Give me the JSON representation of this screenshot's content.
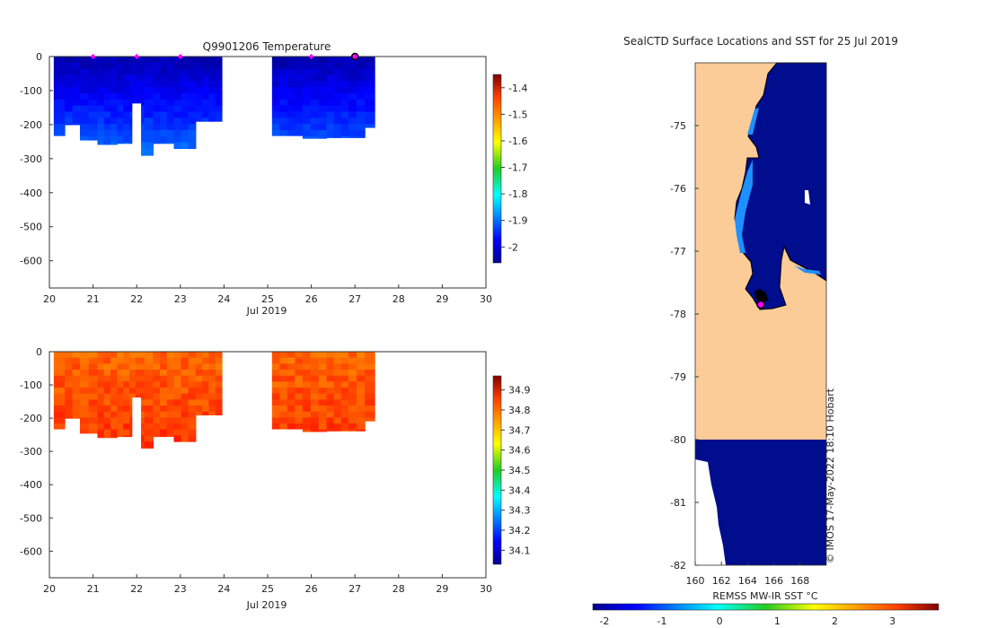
{
  "chart_data": [
    {
      "type": "heatmap",
      "title": "Q9901206  Temperature",
      "xlabel": "Jul 2019",
      "ylabel": "",
      "x_ticks": [
        "20",
        "21",
        "22",
        "23",
        "24",
        "25",
        "26",
        "27",
        "28",
        "29",
        "30"
      ],
      "xlim": [
        20,
        30
      ],
      "y_ticks": [
        "0",
        "-100",
        "-200",
        "-300",
        "-400",
        "-500",
        "-600"
      ],
      "ylim": [
        -680,
        0
      ],
      "colorbar": {
        "ticks": [
          "-1.4",
          "-1.5",
          "-1.6",
          "-1.7",
          "-1.8",
          "-1.9",
          "-2"
        ],
        "range": [
          -2.06,
          -1.35
        ]
      },
      "profile_bottoms_m": [
        {
          "day": 20.2,
          "depth": -232
        },
        {
          "day": 20.5,
          "depth": -200
        },
        {
          "day": 20.9,
          "depth": -245
        },
        {
          "day": 21.3,
          "depth": -258
        },
        {
          "day": 21.8,
          "depth": -255
        },
        {
          "day": 22.15,
          "depth": -290
        },
        {
          "day": 22.6,
          "depth": -255
        },
        {
          "day": 23.1,
          "depth": -270
        },
        {
          "day": 23.6,
          "depth": -190
        },
        {
          "day": 25.5,
          "depth": -232
        },
        {
          "day": 26.1,
          "depth": -240
        },
        {
          "day": 26.6,
          "depth": -238
        },
        {
          "day": 27.1,
          "depth": -238
        },
        {
          "day": 27.35,
          "depth": -208
        }
      ],
      "surface_markers_day": [
        21.0,
        22.0,
        23.0,
        26.0
      ],
      "current_marker_day": 27.0,
      "temperature_range_C": [
        -2.06,
        -1.88
      ]
    },
    {
      "type": "heatmap",
      "title": "",
      "xlabel": "Jul 2019",
      "ylabel": "",
      "x_ticks": [
        "20",
        "21",
        "22",
        "23",
        "24",
        "25",
        "26",
        "27",
        "28",
        "29",
        "30"
      ],
      "xlim": [
        20,
        30
      ],
      "y_ticks": [
        "0",
        "-100",
        "-200",
        "-300",
        "-400",
        "-500",
        "-600"
      ],
      "ylim": [
        -680,
        0
      ],
      "colorbar": {
        "ticks": [
          "34.9",
          "34.8",
          "34.7",
          "34.6",
          "34.5",
          "34.4",
          "34.3",
          "34.2",
          "34.1"
        ],
        "range": [
          34.03,
          34.97
        ]
      },
      "salinity_range": [
        34.72,
        34.84
      ]
    },
    {
      "type": "heatmap",
      "title": "SealCTD Surface Locations and SST for 25 Jul 2019",
      "x_ticks": [
        "160",
        "162",
        "164",
        "166",
        "168"
      ],
      "xlim": [
        160,
        170
      ],
      "y_ticks": [
        "-75",
        "-76",
        "-77",
        "-78",
        "-79",
        "-80",
        "-81",
        "-82"
      ],
      "ylim": [
        -82,
        -74
      ],
      "colorbar_label": "REMSS MW-IR SST °C",
      "colorbar_ticks": [
        "-2",
        "-1",
        "0",
        "1",
        "2",
        "3"
      ],
      "colorbar_range": [
        -2.2,
        3.8
      ],
      "seal_position": {
        "lon": 165.0,
        "lat": -77.85
      },
      "sst_ocean_C": -1.9
    }
  ],
  "credit": "© IMOS 17-May-2022 18:10 Hobart",
  "colors": {
    "land": "#fccc98",
    "ocean": "#000d8c",
    "marker": "#ff00ff"
  }
}
